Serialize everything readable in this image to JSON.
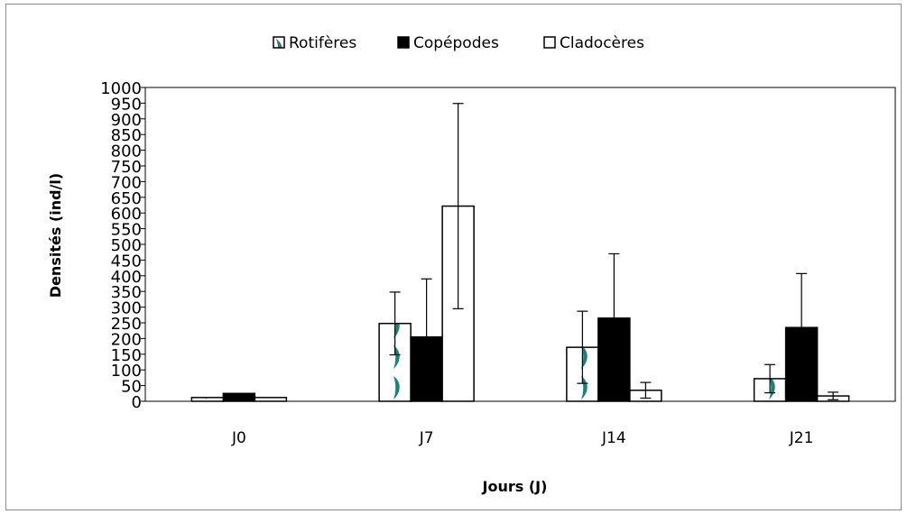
{
  "chart_data": {
    "type": "bar",
    "title": "",
    "xlabel": "Jours (J)",
    "ylabel": "Densités (ind/l)",
    "categories": [
      "J0",
      "J7",
      "J14",
      "J21"
    ],
    "ylim": [
      0,
      1000
    ],
    "yticks": [
      0,
      50,
      100,
      150,
      200,
      250,
      300,
      350,
      400,
      450,
      500,
      550,
      600,
      650,
      700,
      750,
      800,
      850,
      900,
      950,
      1000
    ],
    "grid": false,
    "legend_position": "top",
    "series": [
      {
        "name": "Rotifères",
        "values": [
          12,
          248,
          172,
          72
        ],
        "error": [
          0,
          100,
          115,
          45
        ],
        "fill": "pattern",
        "color": "#1f7f7a"
      },
      {
        "name": "Copépodes",
        "values": [
          25,
          205,
          265,
          235
        ],
        "error": [
          0,
          185,
          205,
          172
        ],
        "fill": "solid",
        "color": "#000000"
      },
      {
        "name": "Cladocères",
        "values": [
          12,
          622,
          35,
          17
        ],
        "error": [
          0,
          327,
          25,
          12
        ],
        "fill": "none",
        "color": "#ffffff"
      }
    ]
  }
}
